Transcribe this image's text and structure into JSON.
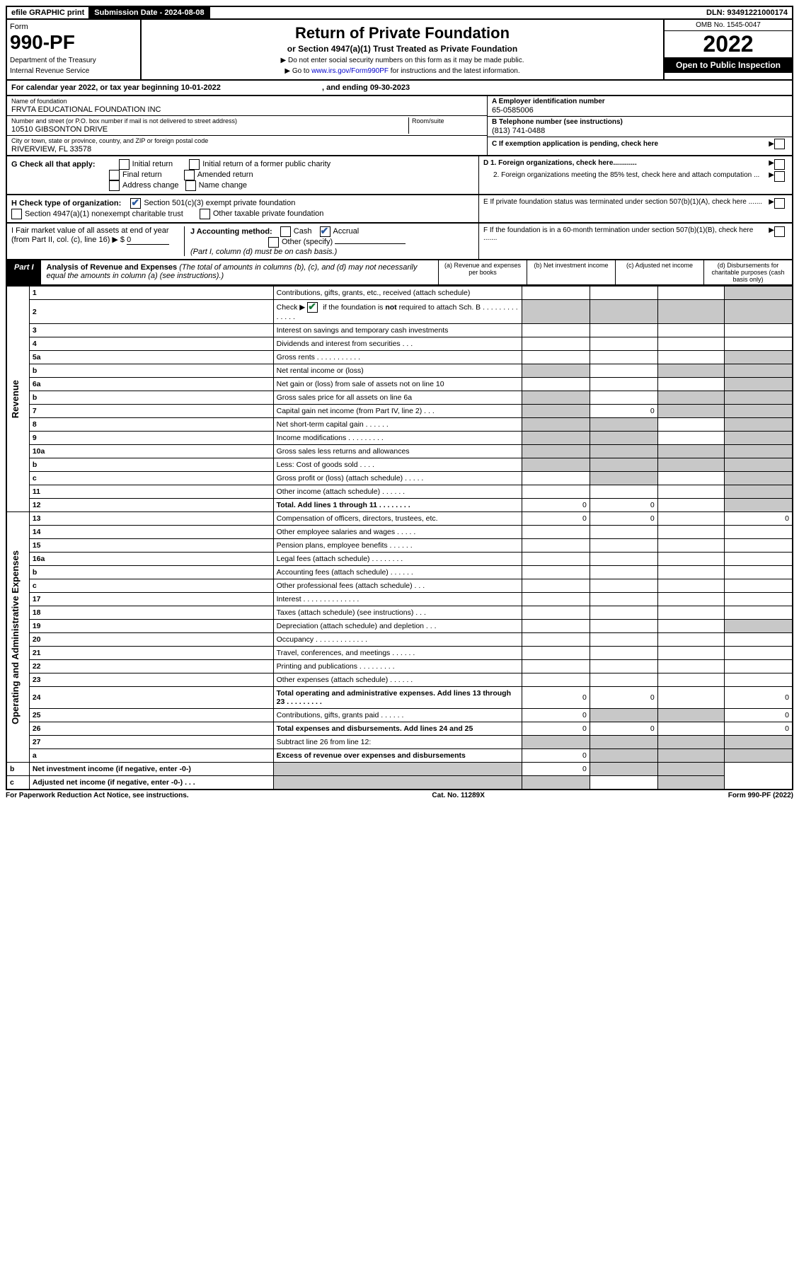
{
  "topbar": {
    "efile": "efile GRAPHIC print",
    "submission": "Submission Date - 2024-08-08",
    "dln": "DLN: 93491221000174"
  },
  "header": {
    "form_word": "Form",
    "form_num": "990-PF",
    "dept": "Department of the Treasury",
    "irs": "Internal Revenue Service",
    "title": "Return of Private Foundation",
    "subtitle": "or Section 4947(a)(1) Trust Treated as Private Foundation",
    "instr1": "▶ Do not enter social security numbers on this form as it may be made public.",
    "instr2": "▶ Go to ",
    "instr2_link": "www.irs.gov/Form990PF",
    "instr2_end": " for instructions and the latest information.",
    "omb": "OMB No. 1545-0047",
    "year": "2022",
    "open": "Open to Public Inspection"
  },
  "calyear": {
    "text": "For calendar year 2022, or tax year beginning 10-01-2022",
    "ending": ", and ending 09-30-2023"
  },
  "info": {
    "name_label": "Name of foundation",
    "name": "FRVTA EDUCATIONAL FOUNDATION INC",
    "addr_label": "Number and street (or P.O. box number if mail is not delivered to street address)",
    "addr": "10510 GIBSONTON DRIVE",
    "room_label": "Room/suite",
    "city_label": "City or town, state or province, country, and ZIP or foreign postal code",
    "city": "RIVERVIEW, FL  33578",
    "ein_label": "A Employer identification number",
    "ein": "65-0585006",
    "phone_label": "B Telephone number (see instructions)",
    "phone": "(813) 741-0488",
    "c_label": "C If exemption application is pending, check here",
    "d1_label": "D 1. Foreign organizations, check here............",
    "d2_label": "2. Foreign organizations meeting the 85% test, check here and attach computation ...",
    "e_label": "E  If private foundation status was terminated under section 507(b)(1)(A), check here .......",
    "f_label": "F  If the foundation is in a 60-month termination under section 507(b)(1)(B), check here .......",
    "g_label": "G Check all that apply:",
    "g_opts": [
      "Initial return",
      "Initial return of a former public charity",
      "Final return",
      "Amended return",
      "Address change",
      "Name change"
    ],
    "h_label": "H Check type of organization:",
    "h_opts": [
      "Section 501(c)(3) exempt private foundation",
      "Section 4947(a)(1) nonexempt charitable trust",
      "Other taxable private foundation"
    ],
    "i_label": "I Fair market value of all assets at end of year (from Part II, col. (c), line 16) ▶ $",
    "i_val": "0",
    "j_label": "J Accounting method:",
    "j_cash": "Cash",
    "j_accrual": "Accrual",
    "j_other": "Other (specify)",
    "j_note": "(Part I, column (d) must be on cash basis.)"
  },
  "part1": {
    "label": "Part I",
    "title": "Analysis of Revenue and Expenses",
    "title_note": " (The total of amounts in columns (b), (c), and (d) may not necessarily equal the amounts in column (a) (see instructions).)",
    "col_a": "(a) Revenue and expenses per books",
    "col_b": "(b) Net investment income",
    "col_c": "(c) Adjusted net income",
    "col_d": "(d) Disbursements for charitable purposes (cash basis only)"
  },
  "side_labels": {
    "revenue": "Revenue",
    "expenses": "Operating and Administrative Expenses"
  },
  "rows": [
    {
      "n": "1",
      "d": "Contributions, gifts, grants, etc., received (attach schedule)"
    },
    {
      "n": "2",
      "d": "Check ▶ ☑ if the foundation is not required to attach Sch. B"
    },
    {
      "n": "3",
      "d": "Interest on savings and temporary cash investments"
    },
    {
      "n": "4",
      "d": "Dividends and interest from securities    .   .   ."
    },
    {
      "n": "5a",
      "d": "Gross rents    .   .   .   .   .   .   .   .   .   .   ."
    },
    {
      "n": "b",
      "d": "Net rental income or (loss)"
    },
    {
      "n": "6a",
      "d": "Net gain or (loss) from sale of assets not on line 10"
    },
    {
      "n": "b",
      "d": "Gross sales price for all assets on line 6a"
    },
    {
      "n": "7",
      "d": "Capital gain net income (from Part IV, line 2)   .   .   .",
      "b": "0"
    },
    {
      "n": "8",
      "d": "Net short-term capital gain   .   .   .   .   .   ."
    },
    {
      "n": "9",
      "d": "Income modifications   .   .   .   .   .   .   .   .   ."
    },
    {
      "n": "10a",
      "d": "Gross sales less returns and allowances"
    },
    {
      "n": "b",
      "d": "Less: Cost of goods sold    .   .   .   ."
    },
    {
      "n": "c",
      "d": "Gross profit or (loss) (attach schedule)    .   .   .   .   ."
    },
    {
      "n": "11",
      "d": "Other income (attach schedule)    .   .   .   .   .   ."
    },
    {
      "n": "12",
      "d": "Total. Add lines 1 through 11   .   .   .   .   .   .   .   .",
      "bold": true,
      "a": "0",
      "b": "0"
    },
    {
      "n": "13",
      "d": "Compensation of officers, directors, trustees, etc.",
      "a": "0",
      "b": "0",
      "dd": "0"
    },
    {
      "n": "14",
      "d": "Other employee salaries and wages    .   .   .   .   ."
    },
    {
      "n": "15",
      "d": "Pension plans, employee benefits   .   .   .   .   .   ."
    },
    {
      "n": "16a",
      "d": "Legal fees (attach schedule)   .   .   .   .   .   .   .   ."
    },
    {
      "n": "b",
      "d": "Accounting fees (attach schedule)   .   .   .   .   .   ."
    },
    {
      "n": "c",
      "d": "Other professional fees (attach schedule)    .   .   ."
    },
    {
      "n": "17",
      "d": "Interest   .   .   .   .   .   .   .   .   .   .   .   .   .   ."
    },
    {
      "n": "18",
      "d": "Taxes (attach schedule) (see instructions)    .   .   ."
    },
    {
      "n": "19",
      "d": "Depreciation (attach schedule) and depletion   .   .   ."
    },
    {
      "n": "20",
      "d": "Occupancy   .   .   .   .   .   .   .   .   .   .   .   .   ."
    },
    {
      "n": "21",
      "d": "Travel, conferences, and meetings   .   .   .   .   .   ."
    },
    {
      "n": "22",
      "d": "Printing and publications   .   .   .   .   .   .   .   .   ."
    },
    {
      "n": "23",
      "d": "Other expenses (attach schedule)   .   .   .   .   .   ."
    },
    {
      "n": "24",
      "d": "Total operating and administrative expenses. Add lines 13 through 23   .   .   .   .   .   .   .   .   .",
      "bold": true,
      "a": "0",
      "b": "0",
      "dd": "0"
    },
    {
      "n": "25",
      "d": "Contributions, gifts, grants paid    .   .   .   .   .   .",
      "a": "0",
      "dd": "0"
    },
    {
      "n": "26",
      "d": "Total expenses and disbursements. Add lines 24 and 25",
      "bold": true,
      "a": "0",
      "b": "0",
      "dd": "0"
    },
    {
      "n": "27",
      "d": "Subtract line 26 from line 12:"
    },
    {
      "n": "a",
      "d": "Excess of revenue over expenses and disbursements",
      "bold": true,
      "a": "0"
    },
    {
      "n": "b",
      "d": "Net investment income (if negative, enter -0-)",
      "bold": true,
      "b": "0"
    },
    {
      "n": "c",
      "d": "Adjusted net income (if negative, enter -0-)   .   .   .",
      "bold": true
    }
  ],
  "footer": {
    "left": "For Paperwork Reduction Act Notice, see instructions.",
    "center": "Cat. No. 11289X",
    "right": "Form 990-PF (2022)"
  },
  "colors": {
    "shade": "#c8c8c8",
    "check_green": "#1a7a3a"
  }
}
